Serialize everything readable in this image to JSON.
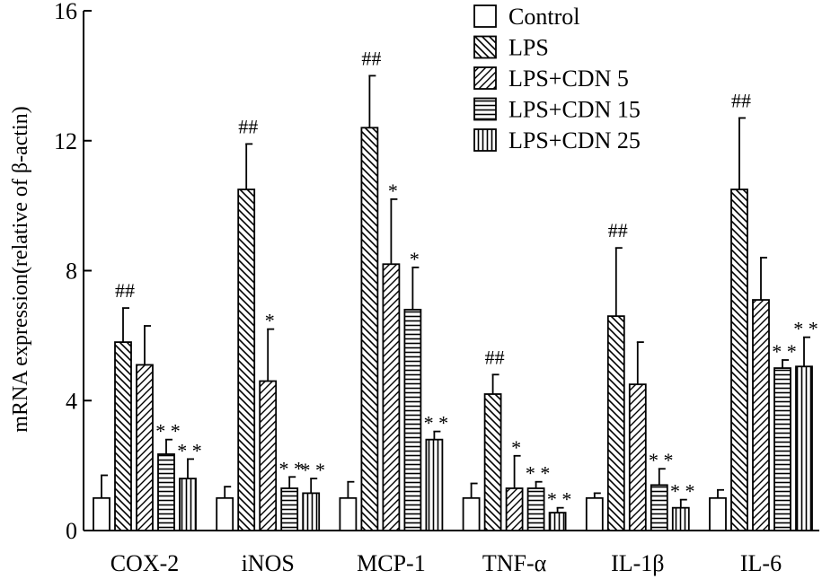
{
  "chart_data": {
    "type": "bar",
    "title": "",
    "xlabel": "",
    "ylabel": "mRNA expression(relative of β-actin)",
    "ylim": [
      0,
      16
    ],
    "yticks": [
      0,
      4,
      8,
      12,
      16
    ],
    "ytick_labels": [
      "0",
      "4",
      "8",
      "12",
      "16"
    ],
    "legend_position": "top-right",
    "categories": [
      "COX-2",
      "iNOS",
      "MCP-1",
      "TNF-α",
      "IL-1β",
      "IL-6"
    ],
    "series": [
      {
        "name": "Control",
        "pattern": "none",
        "values": [
          1.0,
          1.0,
          1.0,
          1.0,
          1.0,
          1.0
        ],
        "errors": [
          0.7,
          0.35,
          0.5,
          0.45,
          0.15,
          0.25
        ],
        "annotations": [
          "",
          "",
          "",
          "",
          "",
          ""
        ]
      },
      {
        "name": "LPS",
        "pattern": "backslash-hatch",
        "values": [
          5.8,
          10.5,
          12.4,
          4.2,
          6.6,
          10.5
        ],
        "errors": [
          1.05,
          1.4,
          1.6,
          0.6,
          2.1,
          2.2
        ],
        "annotations": [
          "##",
          "##",
          "##",
          "##",
          "##",
          "##"
        ]
      },
      {
        "name": "LPS+CDN 5",
        "pattern": "slash-hatch",
        "values": [
          5.1,
          4.6,
          8.2,
          1.3,
          4.5,
          7.1
        ],
        "errors": [
          1.2,
          1.6,
          2.0,
          1.0,
          1.3,
          1.3
        ],
        "annotations": [
          "",
          "*",
          "*",
          "*",
          "",
          ""
        ]
      },
      {
        "name": "LPS+CDN 15",
        "pattern": "horizontal-lines",
        "values": [
          2.35,
          1.3,
          6.8,
          1.3,
          1.4,
          5.0
        ],
        "errors": [
          0.45,
          0.35,
          1.3,
          0.2,
          0.5,
          0.25
        ],
        "annotations": [
          "**",
          "**",
          "*",
          "**",
          "**",
          "**"
        ]
      },
      {
        "name": "LPS+CDN 25",
        "pattern": "vertical-lines",
        "values": [
          1.6,
          1.15,
          2.8,
          0.55,
          0.7,
          5.05
        ],
        "errors": [
          0.6,
          0.45,
          0.25,
          0.15,
          0.25,
          0.9
        ],
        "annotations": [
          "**",
          "**",
          "**",
          "**",
          "**",
          "**"
        ]
      }
    ]
  }
}
